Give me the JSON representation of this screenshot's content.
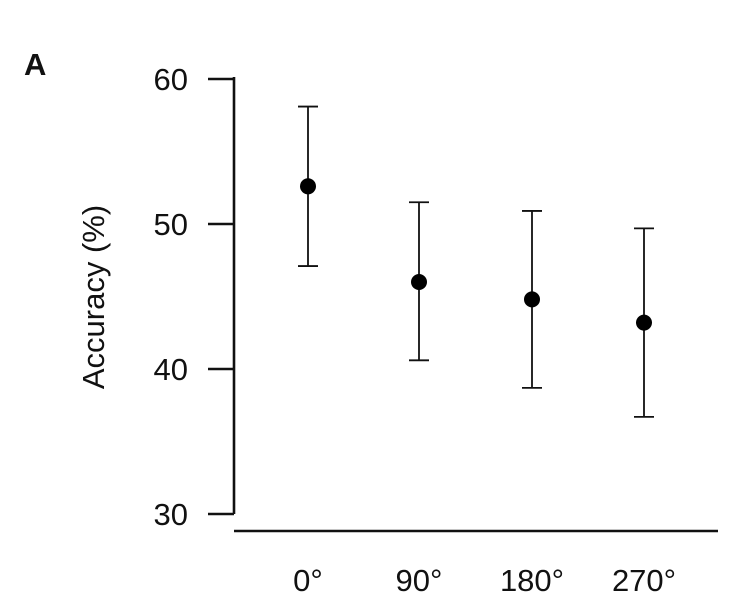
{
  "panel_label": "A",
  "colors": {
    "ink": "#111111",
    "point": "#000000"
  },
  "chart_data": {
    "type": "scatter",
    "title": "",
    "xlabel": "",
    "ylabel": "Accuracy (%)",
    "ylim": [
      30,
      60
    ],
    "yticks": [
      30,
      40,
      50,
      60
    ],
    "categories": [
      "0°",
      "90°",
      "180°",
      "270°"
    ],
    "series": [
      {
        "values": [
          52.6,
          46.0,
          44.8,
          43.2
        ],
        "error_low": [
          47.1,
          40.6,
          38.7,
          36.7
        ],
        "error_high": [
          58.1,
          51.5,
          50.9,
          49.7
        ]
      }
    ],
    "grid": false,
    "legend": "none"
  }
}
